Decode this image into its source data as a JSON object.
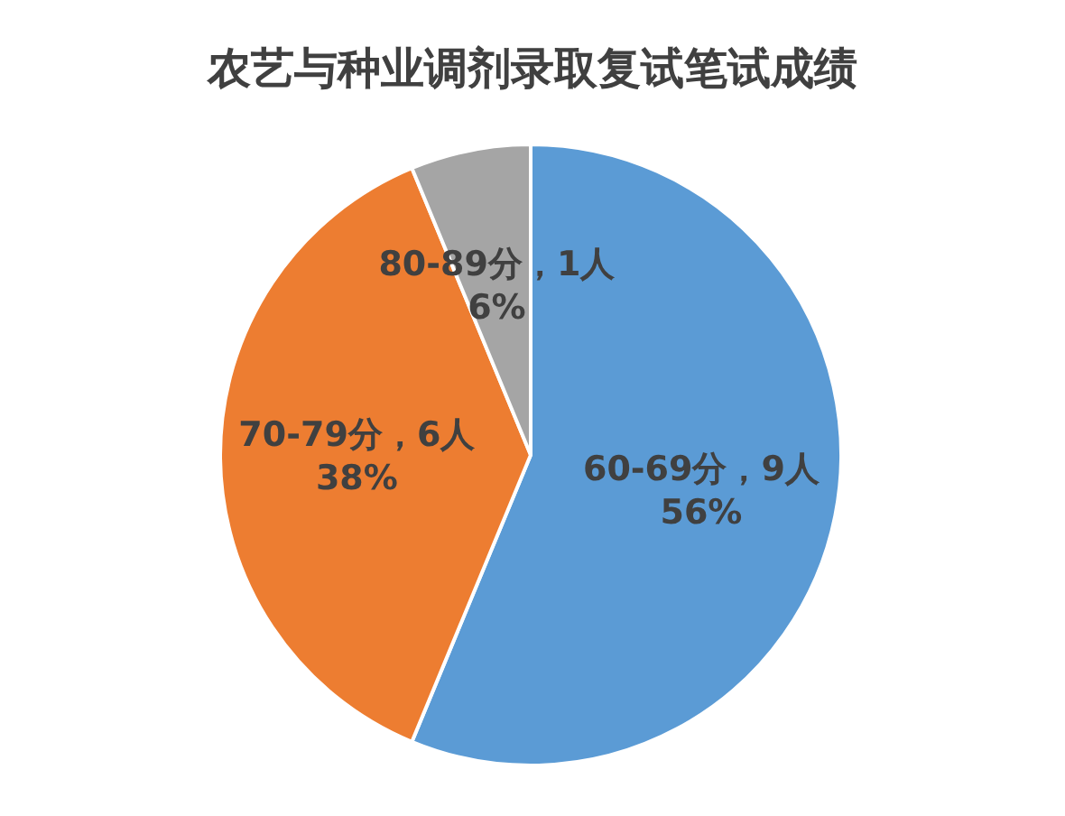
{
  "chart_data": {
    "type": "pie",
    "title": "农艺与种业调剂录取复试笔试成绩",
    "categories": [
      "60-69分",
      "70-79分",
      "80-89分"
    ],
    "values": [
      9,
      6,
      1
    ],
    "colors": [
      "#5b9bd5",
      "#ed7d31",
      "#a5a5a5"
    ],
    "value_labels": [
      "9人\n56%",
      "6人\n38%",
      "1人\n6%"
    ]
  }
}
